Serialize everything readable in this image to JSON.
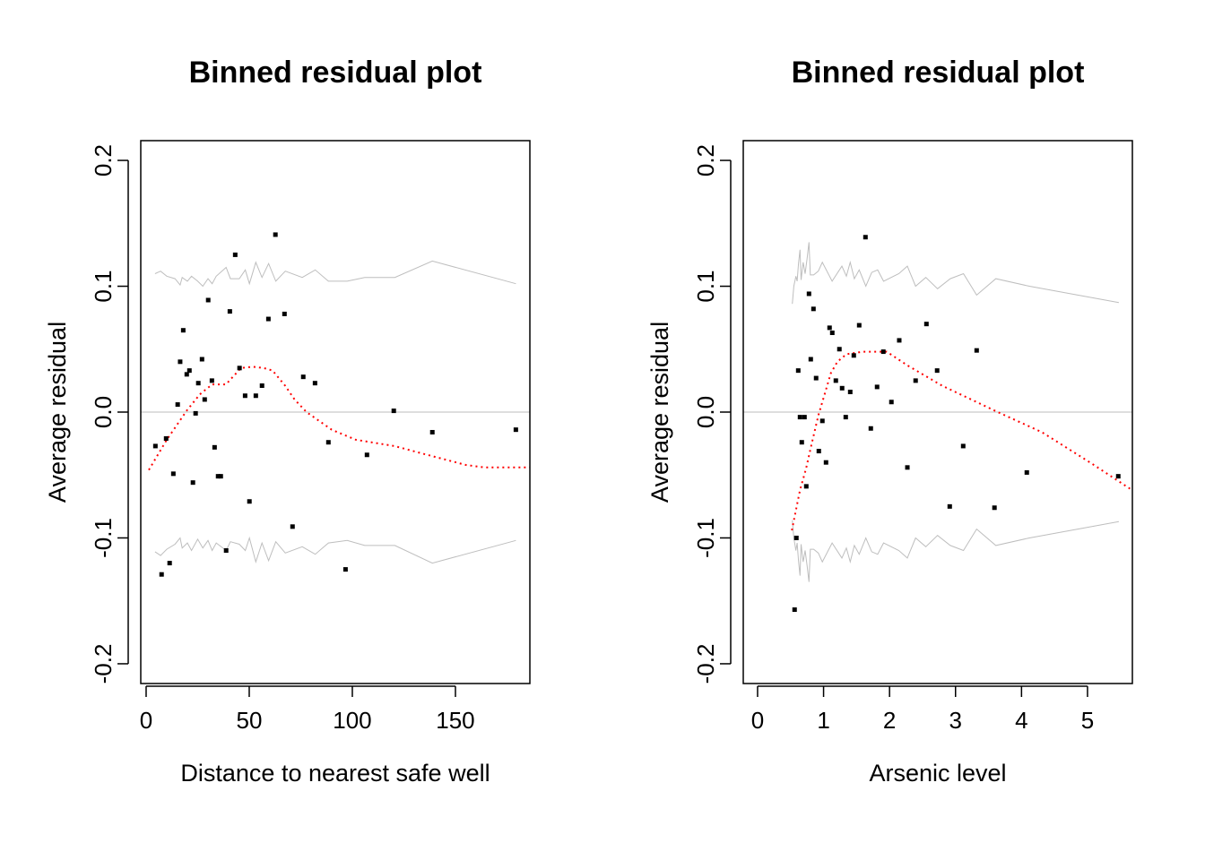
{
  "chart_data": [
    {
      "type": "scatter",
      "title": "Binned residual plot",
      "xlabel": "Distance to nearest safe well",
      "ylabel": "Average residual",
      "xlim": [
        -2.6,
        186.1
      ],
      "ylim": [
        -0.2157,
        0.2157
      ],
      "xticks": [
        0,
        50,
        100,
        150
      ],
      "xtick_labels": [
        "0",
        "50",
        "100",
        "150"
      ],
      "yticks": [
        -0.2,
        -0.1,
        0.0,
        0.1,
        0.2
      ],
      "ytick_labels": [
        "-0.2",
        "-0.1",
        "0.0",
        "0.1",
        "0.2"
      ],
      "points": [
        [
          62.7,
          0.141
        ],
        [
          43.2,
          0.125
        ],
        [
          30.1,
          0.089
        ],
        [
          40.6,
          0.08
        ],
        [
          59.3,
          0.074
        ],
        [
          67.1,
          0.078
        ],
        [
          18.0,
          0.065
        ],
        [
          16.5,
          0.04
        ],
        [
          27.1,
          0.042
        ],
        [
          21.0,
          0.033
        ],
        [
          19.7,
          0.03
        ],
        [
          45.3,
          0.035
        ],
        [
          25.3,
          0.023
        ],
        [
          31.9,
          0.025
        ],
        [
          76.2,
          0.028
        ],
        [
          81.9,
          0.023
        ],
        [
          56.2,
          0.021
        ],
        [
          48.0,
          0.013
        ],
        [
          53.2,
          0.013
        ],
        [
          28.4,
          0.01
        ],
        [
          15.3,
          0.006
        ],
        [
          24.0,
          -0.001
        ],
        [
          120.1,
          0.001
        ],
        [
          138.8,
          -0.016
        ],
        [
          179.3,
          -0.014
        ],
        [
          9.7,
          -0.021
        ],
        [
          4.5,
          -0.027
        ],
        [
          33.2,
          -0.028
        ],
        [
          88.4,
          -0.024
        ],
        [
          107.1,
          -0.034
        ],
        [
          13.2,
          -0.049
        ],
        [
          22.7,
          -0.056
        ],
        [
          34.9,
          -0.051
        ],
        [
          36.2,
          -0.051
        ],
        [
          50.1,
          -0.071
        ],
        [
          71.0,
          -0.091
        ],
        [
          38.8,
          -0.11
        ],
        [
          11.4,
          -0.12
        ],
        [
          7.5,
          -0.129
        ],
        [
          96.7,
          -0.125
        ]
      ],
      "smooth_line": [
        [
          1.3,
          -0.046
        ],
        [
          10,
          -0.022
        ],
        [
          19.6,
          0.001
        ],
        [
          26,
          0.014
        ],
        [
          32,
          0.022
        ],
        [
          38.7,
          0.022
        ],
        [
          46,
          0.035
        ],
        [
          51.7,
          0.036
        ],
        [
          57,
          0.035
        ],
        [
          61.3,
          0.033
        ],
        [
          67.4,
          0.021
        ],
        [
          72,
          0.01
        ],
        [
          77.8,
          0.0
        ],
        [
          90,
          -0.014
        ],
        [
          101.7,
          -0.022
        ],
        [
          120.4,
          -0.027
        ],
        [
          136.5,
          -0.034
        ],
        [
          155,
          -0.042
        ],
        [
          164,
          -0.044
        ],
        [
          186,
          -0.044
        ]
      ],
      "upper_band": [
        [
          4.3,
          0.11
        ],
        [
          7,
          0.112
        ],
        [
          10,
          0.108
        ],
        [
          14,
          0.106
        ],
        [
          16.5,
          0.101
        ],
        [
          17.5,
          0.107
        ],
        [
          20,
          0.104
        ],
        [
          22,
          0.108
        ],
        [
          25,
          0.104
        ],
        [
          27.5,
          0.1
        ],
        [
          30,
          0.106
        ],
        [
          32,
          0.102
        ],
        [
          34,
          0.108
        ],
        [
          38.8,
          0.115
        ],
        [
          40.9,
          0.106
        ],
        [
          45.2,
          0.106
        ],
        [
          48.1,
          0.113
        ],
        [
          50.1,
          0.102
        ],
        [
          53.2,
          0.119
        ],
        [
          56.2,
          0.107
        ],
        [
          59.4,
          0.118
        ],
        [
          62.9,
          0.104
        ],
        [
          67.5,
          0.112
        ],
        [
          75.7,
          0.107
        ],
        [
          82,
          0.113
        ],
        [
          88.4,
          0.104
        ],
        [
          97.5,
          0.104
        ],
        [
          106,
          0.107
        ],
        [
          120.6,
          0.107
        ],
        [
          138.8,
          0.12
        ],
        [
          179.3,
          0.102
        ]
      ],
      "lower_band": [
        [
          4.3,
          -0.111
        ],
        [
          7,
          -0.114
        ],
        [
          10,
          -0.109
        ],
        [
          14,
          -0.105
        ],
        [
          16.5,
          -0.1
        ],
        [
          17.5,
          -0.108
        ],
        [
          20,
          -0.104
        ],
        [
          22,
          -0.11
        ],
        [
          25,
          -0.101
        ],
        [
          27.5,
          -0.108
        ],
        [
          30,
          -0.102
        ],
        [
          32,
          -0.11
        ],
        [
          34,
          -0.104
        ],
        [
          38.8,
          -0.11
        ],
        [
          40.9,
          -0.103
        ],
        [
          45.2,
          -0.105
        ],
        [
          48.1,
          -0.11
        ],
        [
          50.1,
          -0.1
        ],
        [
          53.2,
          -0.119
        ],
        [
          56.2,
          -0.104
        ],
        [
          59.4,
          -0.118
        ],
        [
          62.9,
          -0.103
        ],
        [
          67.5,
          -0.112
        ],
        [
          75.7,
          -0.107
        ],
        [
          82,
          -0.113
        ],
        [
          88.4,
          -0.104
        ],
        [
          97.5,
          -0.102
        ],
        [
          106,
          -0.106
        ],
        [
          120.6,
          -0.106
        ],
        [
          138.8,
          -0.12
        ],
        [
          179.3,
          -0.102
        ]
      ],
      "reference_line": 0.0,
      "colors": {
        "points": "#000000",
        "smooth": "#ff0000",
        "band": "#bebebe",
        "reference": "#bebebe"
      }
    },
    {
      "type": "scatter",
      "title": "Binned residual plot",
      "xlabel": "Arsenic level",
      "ylabel": "Average residual",
      "xlim": [
        -0.217,
        5.68
      ],
      "ylim": [
        -0.2157,
        0.2157
      ],
      "xticks": [
        0,
        1,
        2,
        3,
        4,
        5
      ],
      "xtick_labels": [
        "0",
        "1",
        "2",
        "3",
        "4",
        "5"
      ],
      "yticks": [
        -0.2,
        -0.1,
        0.0,
        0.1,
        0.2
      ],
      "ytick_labels": [
        "-0.2",
        "-0.1",
        "0.0",
        "0.1",
        "0.2"
      ],
      "points": [
        [
          1.635,
          0.139
        ],
        [
          0.779,
          0.094
        ],
        [
          0.847,
          0.082
        ],
        [
          1.091,
          0.067
        ],
        [
          1.132,
          0.063
        ],
        [
          1.54,
          0.069
        ],
        [
          2.559,
          0.07
        ],
        [
          2.147,
          0.057
        ],
        [
          3.32,
          0.049
        ],
        [
          1.24,
          0.05
        ],
        [
          1.458,
          0.045
        ],
        [
          1.906,
          0.048
        ],
        [
          0.806,
          0.042
        ],
        [
          0.616,
          0.033
        ],
        [
          2.721,
          0.033
        ],
        [
          0.887,
          0.027
        ],
        [
          1.186,
          0.025
        ],
        [
          2.395,
          0.025
        ],
        [
          1.281,
          0.019
        ],
        [
          1.404,
          0.016
        ],
        [
          1.811,
          0.02
        ],
        [
          2.028,
          0.008
        ],
        [
          0.643,
          -0.004
        ],
        [
          0.711,
          -0.004
        ],
        [
          0.982,
          -0.007
        ],
        [
          1.336,
          -0.004
        ],
        [
          1.716,
          -0.013
        ],
        [
          0.67,
          -0.024
        ],
        [
          0.928,
          -0.031
        ],
        [
          1.037,
          -0.04
        ],
        [
          3.116,
          -0.027
        ],
        [
          2.27,
          -0.044
        ],
        [
          4.08,
          -0.048
        ],
        [
          5.466,
          -0.051
        ],
        [
          0.738,
          -0.059
        ],
        [
          2.912,
          -0.075
        ],
        [
          3.59,
          -0.076
        ],
        [
          0.588,
          -0.1
        ],
        [
          0.561,
          -0.157
        ]
      ],
      "smooth_line": [
        [
          0.52,
          -0.094
        ],
        [
          0.561,
          -0.083
        ],
        [
          0.643,
          -0.062
        ],
        [
          0.734,
          -0.045
        ],
        [
          0.825,
          -0.024
        ],
        [
          0.924,
          -0.002
        ],
        [
          1.015,
          0.014
        ],
        [
          1.11,
          0.031
        ],
        [
          1.21,
          0.04
        ],
        [
          1.345,
          0.046
        ],
        [
          1.594,
          0.048
        ],
        [
          1.957,
          0.048
        ],
        [
          2.273,
          0.037
        ],
        [
          2.795,
          0.021
        ],
        [
          3.64,
          0.0
        ],
        [
          4.31,
          -0.016
        ],
        [
          5.037,
          -0.04
        ],
        [
          5.648,
          -0.061
        ]
      ],
      "upper_band": [
        [
          0.526,
          0.086
        ],
        [
          0.55,
          0.1
        ],
        [
          0.58,
          0.108
        ],
        [
          0.6,
          0.104
        ],
        [
          0.62,
          0.118
        ],
        [
          0.643,
          0.129
        ],
        [
          0.66,
          0.105
        ],
        [
          0.69,
          0.119
        ],
        [
          0.72,
          0.11
        ],
        [
          0.75,
          0.122
        ],
        [
          0.779,
          0.135
        ],
        [
          0.8,
          0.109
        ],
        [
          0.85,
          0.109
        ],
        [
          0.92,
          0.112
        ],
        [
          0.982,
          0.119
        ],
        [
          1.13,
          0.104
        ],
        [
          1.277,
          0.116
        ],
        [
          1.345,
          0.108
        ],
        [
          1.404,
          0.119
        ],
        [
          1.467,
          0.106
        ],
        [
          1.54,
          0.113
        ],
        [
          1.64,
          0.1
        ],
        [
          1.73,
          0.111
        ],
        [
          1.82,
          0.113
        ],
        [
          1.91,
          0.104
        ],
        [
          2.14,
          0.11
        ],
        [
          2.27,
          0.116
        ],
        [
          2.395,
          0.1
        ],
        [
          2.55,
          0.107
        ],
        [
          2.727,
          0.098
        ],
        [
          2.92,
          0.106
        ],
        [
          3.12,
          0.11
        ],
        [
          3.32,
          0.093
        ],
        [
          3.61,
          0.106
        ],
        [
          4.12,
          0.1
        ],
        [
          5.475,
          0.087
        ]
      ],
      "lower_band": [
        [
          0.526,
          -0.086
        ],
        [
          0.55,
          -0.1
        ],
        [
          0.58,
          -0.11
        ],
        [
          0.6,
          -0.104
        ],
        [
          0.62,
          -0.118
        ],
        [
          0.643,
          -0.13
        ],
        [
          0.66,
          -0.105
        ],
        [
          0.69,
          -0.119
        ],
        [
          0.72,
          -0.11
        ],
        [
          0.75,
          -0.122
        ],
        [
          0.779,
          -0.135
        ],
        [
          0.8,
          -0.109
        ],
        [
          0.85,
          -0.109
        ],
        [
          0.92,
          -0.112
        ],
        [
          0.982,
          -0.119
        ],
        [
          1.13,
          -0.104
        ],
        [
          1.277,
          -0.116
        ],
        [
          1.345,
          -0.108
        ],
        [
          1.404,
          -0.119
        ],
        [
          1.467,
          -0.106
        ],
        [
          1.54,
          -0.113
        ],
        [
          1.64,
          -0.1
        ],
        [
          1.73,
          -0.111
        ],
        [
          1.82,
          -0.113
        ],
        [
          1.91,
          -0.104
        ],
        [
          2.14,
          -0.11
        ],
        [
          2.27,
          -0.116
        ],
        [
          2.395,
          -0.1
        ],
        [
          2.55,
          -0.107
        ],
        [
          2.727,
          -0.098
        ],
        [
          2.92,
          -0.106
        ],
        [
          3.12,
          -0.11
        ],
        [
          3.32,
          -0.093
        ],
        [
          3.61,
          -0.106
        ],
        [
          4.12,
          -0.1
        ],
        [
          5.475,
          -0.087
        ]
      ],
      "reference_line": 0.0,
      "colors": {
        "points": "#000000",
        "smooth": "#ff0000",
        "band": "#bebebe",
        "reference": "#bebebe"
      }
    }
  ]
}
